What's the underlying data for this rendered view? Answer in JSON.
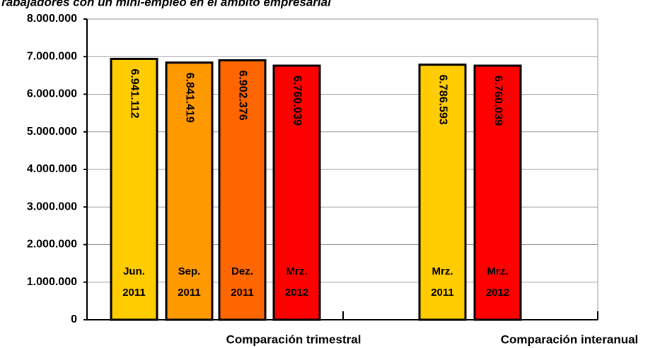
{
  "chart_data": {
    "type": "bar",
    "title": "Trabajadores con un mini-empleo en el ámbito empresarial",
    "categories": [
      [
        "Jun.",
        "2011"
      ],
      [
        "Sep.",
        "2011"
      ],
      [
        "Dez.",
        "2011"
      ],
      [
        "Mrz.",
        "2012"
      ],
      [
        "Mrz.",
        "2011"
      ],
      [
        "Mrz.",
        "2012"
      ]
    ],
    "values": [
      6941112,
      6841419,
      6902376,
      6760039,
      6786593,
      6760039
    ],
    "value_labels": [
      "6.941.112",
      "6.841.419",
      "6.902.376",
      "6.760.039",
      "6.786.593",
      "6.760.039"
    ],
    "colors": [
      "#FFCC00",
      "#FF9900",
      "#FF6600",
      "#FF0000",
      "#FFCC00",
      "#FF0000"
    ],
    "group_labels": [
      "Comparación trimestral",
      "Comparación interanual"
    ],
    "ylim": [
      0,
      8000000
    ],
    "yticks": [
      0,
      {
        "value": 1000000,
        "label": "1.000.000"
      },
      {
        "value": 2000000,
        "label": "2.000.000"
      },
      {
        "value": 3000000,
        "label": "3.000.000"
      },
      {
        "value": 4000000,
        "label": "4.000.000"
      },
      {
        "value": 5000000,
        "label": "5.000.000"
      },
      {
        "value": 6000000,
        "label": "6.000.000"
      },
      {
        "value": 7000000,
        "label": "7.000.000"
      },
      {
        "value": 8000000,
        "label": "8.000.000"
      }
    ],
    "grid": true
  }
}
